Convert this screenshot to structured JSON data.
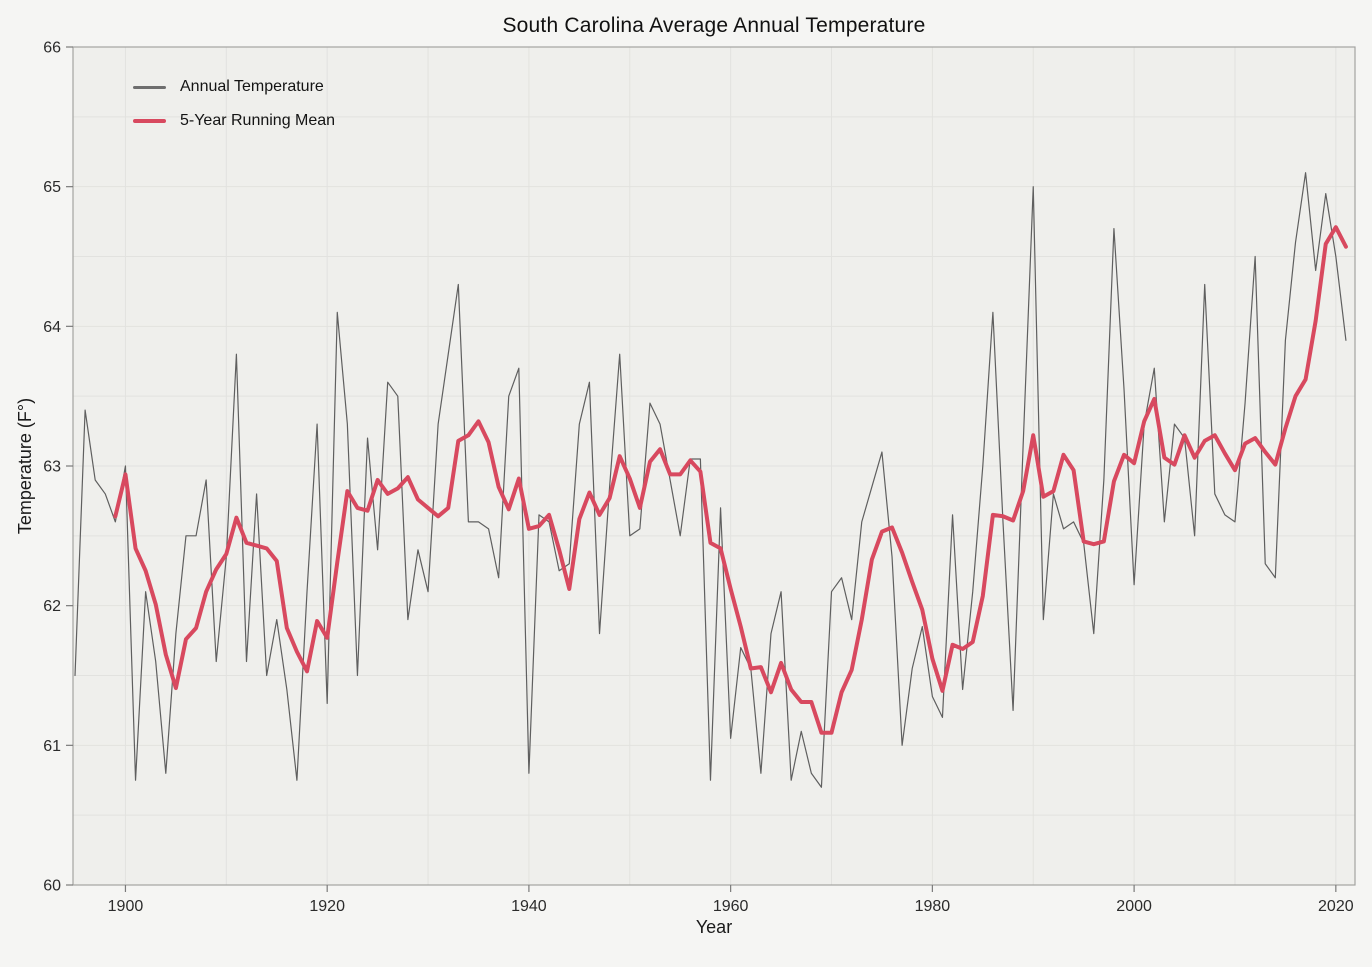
{
  "title": "South Carolina Average Annual Temperature",
  "axes": {
    "x_label": "Year",
    "y_label": "Temperature (F°)"
  },
  "legend": {
    "items": [
      {
        "label": "Annual Temperature",
        "color": "#6e6e6e"
      },
      {
        "label": "5-Year Running Mean",
        "color": "#d8495f"
      }
    ],
    "position": "upper left",
    "frame": false
  },
  "colors": {
    "figure_bg": "#f5f5f3",
    "plot_bg": "#efefec",
    "grid": "#e2e2df",
    "spine": "#a3a3a1",
    "tick": "#7a7a7a",
    "tick_label": "#2b2b2b",
    "annual_line": "#5f5f5f",
    "mean_line": "#d8495f"
  },
  "chart_data": {
    "type": "line",
    "title": "South Carolina Average Annual Temperature",
    "xlabel": "Year",
    "ylabel": "Temperature (F°)",
    "xlim": [
      1894.8,
      2021.9
    ],
    "ylim": [
      60,
      66
    ],
    "x_ticks": [
      1900,
      1920,
      1940,
      1960,
      1980,
      2000,
      2020
    ],
    "y_ticks": [
      60,
      61,
      62,
      63,
      64,
      65,
      66
    ],
    "grid": {
      "on": true,
      "x_step_years": 10,
      "y_step_degrees": 0.5
    },
    "legend_position": "upper left",
    "series": [
      {
        "name": "Annual Temperature",
        "color": "#5f5f5f",
        "line_width": 1.2,
        "x_start": 1895,
        "x_step": 1,
        "values": [
          61.5,
          63.4,
          62.9,
          62.8,
          62.6,
          63.0,
          60.75,
          62.1,
          61.6,
          60.8,
          61.8,
          62.5,
          62.5,
          62.9,
          61.6,
          62.35,
          63.8,
          61.6,
          62.8,
          61.5,
          61.9,
          61.4,
          60.75,
          62.1,
          63.3,
          61.3,
          64.1,
          63.3,
          61.5,
          63.2,
          62.4,
          63.6,
          63.5,
          61.9,
          62.4,
          62.1,
          63.3,
          63.8,
          64.3,
          62.6,
          62.6,
          62.55,
          62.2,
          63.5,
          63.7,
          60.8,
          62.65,
          62.6,
          62.25,
          62.3,
          63.3,
          63.6,
          61.8,
          62.85,
          63.8,
          62.5,
          62.55,
          63.45,
          63.3,
          62.9,
          62.5,
          63.05,
          63.05,
          60.75,
          62.7,
          61.05,
          61.7,
          61.55,
          60.8,
          61.8,
          62.1,
          60.75,
          61.1,
          60.8,
          60.7,
          62.1,
          62.2,
          61.9,
          62.6,
          62.85,
          63.1,
          62.35,
          61.0,
          61.55,
          61.85,
          61.35,
          61.2,
          62.65,
          61.4,
          62.1,
          63.0,
          64.1,
          62.6,
          61.25,
          63.15,
          65.0,
          61.9,
          62.8,
          62.55,
          62.6,
          62.45,
          61.8,
          62.9,
          64.7,
          63.55,
          62.15,
          63.3,
          63.7,
          62.6,
          63.3,
          63.2,
          62.5,
          64.3,
          62.8,
          62.65,
          62.6,
          63.45,
          64.5,
          62.3,
          62.2,
          63.9,
          64.6,
          65.1,
          64.4,
          64.95,
          64.5,
          63.9
        ]
      },
      {
        "name": "5-Year Running Mean",
        "color": "#d8495f",
        "line_width": 4,
        "window_years": 5,
        "alignment": "trailing",
        "x_start": 1899,
        "x_step": 1,
        "values": [
          62.64,
          62.94,
          62.41,
          62.25,
          62.01,
          61.65,
          61.41,
          61.76,
          61.84,
          62.1,
          62.26,
          62.37,
          62.63,
          62.45,
          62.43,
          62.41,
          62.32,
          61.84,
          61.67,
          61.53,
          61.89,
          61.77,
          62.31,
          62.82,
          62.7,
          62.68,
          62.9,
          62.8,
          62.84,
          62.92,
          62.76,
          62.7,
          62.64,
          62.7,
          63.18,
          63.22,
          63.32,
          63.17,
          62.85,
          62.69,
          62.91,
          62.55,
          62.57,
          62.65,
          62.4,
          62.12,
          62.62,
          62.81,
          62.65,
          62.77,
          63.07,
          62.91,
          62.7,
          63.03,
          63.12,
          62.94,
          62.94,
          63.04,
          62.96,
          62.45,
          62.41,
          62.12,
          61.85,
          61.55,
          61.56,
          61.38,
          61.59,
          61.4,
          61.31,
          61.31,
          61.09,
          61.09,
          61.38,
          61.54,
          61.9,
          62.33,
          62.53,
          62.56,
          62.38,
          62.17,
          61.97,
          61.62,
          61.39,
          61.72,
          61.69,
          61.74,
          62.07,
          62.65,
          62.64,
          62.61,
          62.82,
          63.22,
          62.78,
          62.82,
          63.08,
          62.97,
          62.46,
          62.44,
          62.46,
          62.89,
          63.08,
          63.02,
          63.32,
          63.48,
          63.06,
          63.01,
          63.22,
          63.06,
          63.18,
          63.22,
          63.09,
          62.97,
          63.16,
          63.2,
          63.1,
          63.01,
          63.27,
          63.5,
          63.62,
          64.04,
          64.59,
          64.71,
          64.57
        ]
      }
    ]
  }
}
